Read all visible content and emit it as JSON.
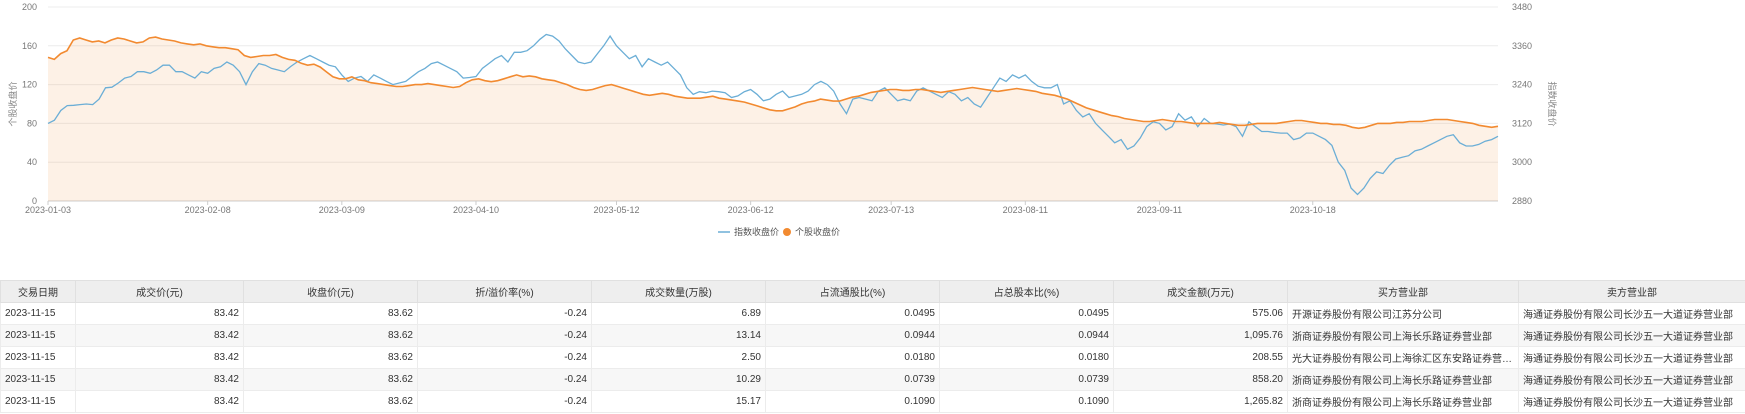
{
  "chart_data": {
    "type": "line",
    "y_left": {
      "label": "个股收盘价",
      "ticks": [
        0,
        40,
        80,
        120,
        160,
        200
      ],
      "range": [
        0,
        200
      ]
    },
    "y_right": {
      "label": "指数收盘价",
      "ticks": [
        2880,
        3000,
        3120,
        3240,
        3360,
        3480
      ],
      "range": [
        2880,
        3480
      ]
    },
    "x_ticks": [
      "2023-01-03",
      "2023-02-08",
      "2023-03-09",
      "2023-04-10",
      "2023-05-12",
      "2023-06-12",
      "2023-07-13",
      "2023-08-11",
      "2023-09-11",
      "2023-10-18"
    ],
    "grid": true,
    "legend": {
      "position": "bottom-center"
    },
    "series": [
      {
        "name": "指数收盘价",
        "axis": "right",
        "color": "#6baed6",
        "values": [
          3120,
          3130,
          3160,
          3175,
          3176,
          3178,
          3180,
          3178,
          3195,
          3230,
          3232,
          3245,
          3260,
          3265,
          3280,
          3280,
          3275,
          3285,
          3300,
          3300,
          3280,
          3280,
          3270,
          3260,
          3280,
          3275,
          3290,
          3295,
          3310,
          3300,
          3280,
          3240,
          3280,
          3305,
          3300,
          3290,
          3285,
          3280,
          3296,
          3310,
          3320,
          3330,
          3320,
          3310,
          3300,
          3295,
          3270,
          3250,
          3260,
          3265,
          3250,
          3270,
          3260,
          3250,
          3240,
          3245,
          3250,
          3265,
          3280,
          3290,
          3305,
          3310,
          3300,
          3290,
          3280,
          3260,
          3262,
          3265,
          3290,
          3305,
          3320,
          3330,
          3310,
          3340,
          3340,
          3345,
          3360,
          3380,
          3395,
          3390,
          3375,
          3350,
          3330,
          3310,
          3305,
          3310,
          3335,
          3360,
          3390,
          3360,
          3340,
          3320,
          3330,
          3295,
          3320,
          3310,
          3300,
          3310,
          3290,
          3270,
          3230,
          3210,
          3218,
          3215,
          3220,
          3218,
          3215,
          3200,
          3205,
          3218,
          3225,
          3210,
          3190,
          3195,
          3210,
          3220,
          3200,
          3205,
          3210,
          3220,
          3240,
          3250,
          3240,
          3220,
          3180,
          3150,
          3195,
          3200,
          3195,
          3190,
          3220,
          3230,
          3210,
          3190,
          3195,
          3190,
          3220,
          3230,
          3220,
          3210,
          3200,
          3218,
          3210,
          3190,
          3200,
          3180,
          3170,
          3200,
          3230,
          3260,
          3250,
          3270,
          3260,
          3270,
          3250,
          3235,
          3230,
          3230,
          3240,
          3180,
          3190,
          3160,
          3140,
          3150,
          3120,
          3100,
          3080,
          3060,
          3070,
          3040,
          3050,
          3075,
          3110,
          3125,
          3120,
          3100,
          3110,
          3150,
          3130,
          3140,
          3110,
          3135,
          3120,
          3118,
          3115,
          3118,
          3110,
          3080,
          3125,
          3110,
          3095,
          3095,
          3092,
          3090,
          3090,
          3070,
          3075,
          3090,
          3090,
          3080,
          3070,
          3052,
          3000,
          2975,
          2920,
          2900,
          2920,
          2950,
          2970,
          2965,
          2990,
          3010,
          3015,
          3020,
          3035,
          3040,
          3050,
          3060,
          3070,
          3080,
          3085,
          3060,
          3050,
          3050,
          3055,
          3065,
          3070,
          3080
        ]
      },
      {
        "name": "个股收盘价",
        "axis": "left",
        "color": "#f28a30",
        "values": [
          148,
          146,
          152,
          155,
          166,
          168,
          166,
          164,
          165,
          163,
          166,
          168,
          167,
          165,
          163,
          164,
          168,
          169,
          167,
          166,
          165,
          163,
          162,
          161,
          162,
          160,
          159,
          158,
          158,
          157,
          156,
          150,
          148,
          149,
          150,
          150,
          151,
          148,
          146,
          145,
          142,
          140,
          141,
          138,
          133,
          128,
          126,
          126,
          128,
          125,
          124,
          122,
          121,
          120,
          119,
          118,
          118,
          119,
          120,
          120,
          121,
          120,
          119,
          118,
          117,
          118,
          122,
          125,
          126,
          124,
          123,
          124,
          126,
          128,
          130,
          128,
          129,
          128,
          126,
          125,
          124,
          122,
          120,
          117,
          115,
          114,
          115,
          117,
          119,
          120,
          118,
          116,
          114,
          112,
          110,
          109,
          110,
          111,
          110,
          108,
          107,
          106,
          106,
          106,
          107,
          108,
          106,
          105,
          104,
          103,
          102,
          100,
          98,
          96,
          94,
          93,
          93,
          95,
          97,
          100,
          102,
          103,
          105,
          104,
          103,
          103,
          105,
          107,
          108,
          110,
          112,
          113,
          114,
          115,
          115,
          114,
          114,
          115,
          115,
          114,
          113,
          112,
          113,
          114,
          115,
          116,
          117,
          116,
          115,
          114,
          113,
          114,
          115,
          116,
          115,
          114,
          113,
          111,
          110,
          109,
          107,
          105,
          102,
          99,
          96,
          94,
          92,
          90,
          88,
          87,
          85,
          84,
          83,
          82,
          82,
          83,
          84,
          83,
          82,
          82,
          81,
          80,
          80,
          80,
          80,
          81,
          80,
          79,
          78,
          78,
          79,
          80,
          80,
          80,
          80,
          81,
          82,
          83,
          83,
          82,
          81,
          80,
          80,
          79,
          79,
          78,
          76,
          75,
          76,
          78,
          80,
          80,
          80,
          81,
          81,
          82,
          82,
          82,
          83,
          84,
          84,
          84,
          83,
          82,
          81,
          80,
          78,
          77,
          76,
          77
        ]
      }
    ]
  },
  "table": {
    "headers": [
      "交易日期",
      "成交价(元)",
      "收盘价(元)",
      "折/溢价率(%)",
      "成交数量(万股)",
      "占流通股比(%)",
      "占总股本比(%)",
      "成交金额(万元)",
      "买方营业部",
      "卖方营业部"
    ],
    "rows": [
      [
        "2023-11-15",
        "83.42",
        "83.62",
        "-0.24",
        "6.89",
        "0.0495",
        "0.0495",
        "575.06",
        "开源证券股份有限公司江苏分公司",
        "海通证券股份有限公司长沙五一大道证券营业部"
      ],
      [
        "2023-11-15",
        "83.42",
        "83.62",
        "-0.24",
        "13.14",
        "0.0944",
        "0.0944",
        "1,095.76",
        "浙商证券股份有限公司上海长乐路证券营业部",
        "海通证券股份有限公司长沙五一大道证券营业部"
      ],
      [
        "2023-11-15",
        "83.42",
        "83.62",
        "-0.24",
        "2.50",
        "0.0180",
        "0.0180",
        "208.55",
        "光大证券股份有限公司上海徐汇区东安路证券营业部",
        "海通证券股份有限公司长沙五一大道证券营业部"
      ],
      [
        "2023-11-15",
        "83.42",
        "83.62",
        "-0.24",
        "10.29",
        "0.0739",
        "0.0739",
        "858.20",
        "浙商证券股份有限公司上海长乐路证券营业部",
        "海通证券股份有限公司长沙五一大道证券营业部"
      ],
      [
        "2023-11-15",
        "83.42",
        "83.62",
        "-0.24",
        "15.17",
        "0.1090",
        "0.1090",
        "1,265.82",
        "浙商证券股份有限公司上海长乐路证券营业部",
        "海通证券股份有限公司长沙五一大道证券营业部"
      ]
    ]
  }
}
